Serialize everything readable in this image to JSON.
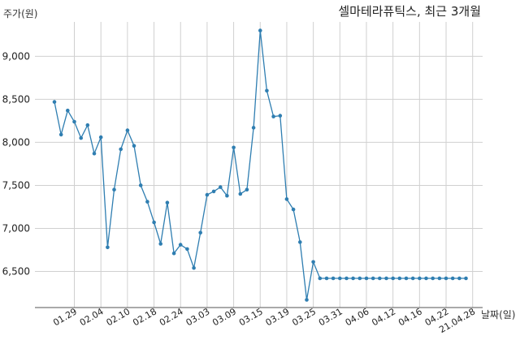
{
  "chart_data": {
    "type": "line",
    "title": "셀마테라퓨틱스, 최근 3개월",
    "ylabel": "주가(원)",
    "xlabel": "날짜(일)",
    "ylim": [
      6080,
      9400
    ],
    "yticks": [
      6500,
      7000,
      7500,
      8000,
      8500,
      9000
    ],
    "ytick_labels": [
      "6,500",
      "7,000",
      "7,500",
      "8,000",
      "8,500",
      "9,000"
    ],
    "xtick_labels": [
      "01.29",
      "02.04",
      "02.10",
      "02.18",
      "02.24",
      "03.03",
      "03.09",
      "03.15",
      "03.19",
      "03.25",
      "03.31",
      "04.06",
      "04.12",
      "04.16",
      "04.22",
      "21.04.28"
    ],
    "xtick_positions": [
      3,
      7,
      11,
      15,
      19,
      23,
      27,
      31,
      35,
      39,
      43,
      47,
      51,
      55,
      59,
      63
    ],
    "grid": true,
    "x": [
      0,
      1,
      2,
      3,
      4,
      5,
      6,
      7,
      8,
      9,
      10,
      11,
      12,
      13,
      14,
      15,
      16,
      17,
      18,
      19,
      20,
      21,
      22,
      23,
      24,
      25,
      26,
      27,
      28,
      29,
      30,
      31,
      32,
      33,
      34,
      35,
      36,
      37,
      38,
      39,
      40,
      41,
      42,
      43,
      44,
      45,
      46,
      47,
      48,
      49,
      50,
      51,
      52,
      53,
      54,
      55,
      56,
      57,
      58,
      59,
      60,
      61,
      62
    ],
    "series": [
      {
        "color": "#2f7eb1",
        "values": [
          8470,
          8090,
          8370,
          8240,
          8050,
          8200,
          7870,
          8060,
          6780,
          7450,
          7920,
          8140,
          7960,
          7500,
          7310,
          7070,
          6820,
          7300,
          6710,
          6810,
          6760,
          6540,
          6950,
          7390,
          7430,
          7480,
          7380,
          7940,
          7400,
          7450,
          8170,
          9300,
          8600,
          8300,
          8310,
          7340,
          7220,
          6840,
          6170,
          6610,
          6420,
          6420,
          6420,
          6420,
          6420,
          6420,
          6420,
          6420,
          6420,
          6420,
          6420,
          6420,
          6420,
          6420,
          6420,
          6420,
          6420,
          6420,
          6420,
          6420,
          6420,
          6420,
          6420
        ]
      }
    ]
  }
}
